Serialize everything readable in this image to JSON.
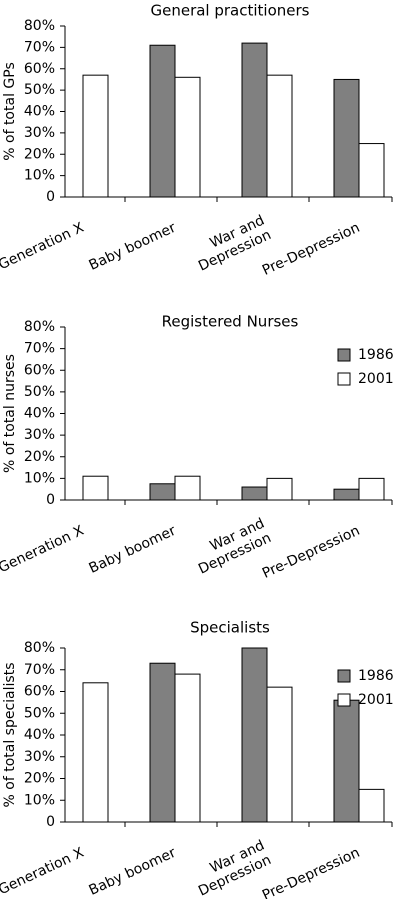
{
  "chart_data": [
    {
      "type": "bar",
      "title": "General practitioners",
      "ylabel": "% of total GPs",
      "categories": [
        "Generation X",
        "Baby boomer",
        "War and\nDepression",
        "Pre-Depression"
      ],
      "series": [
        {
          "name": "1986",
          "color": "#808080",
          "values": [
            null,
            71,
            72,
            55
          ]
        },
        {
          "name": "2001",
          "color": "#ffffff",
          "values": [
            57,
            56,
            57,
            25
          ]
        }
      ],
      "ylim": [
        0,
        80
      ],
      "yticks": [
        0,
        {
          "value": 10,
          "label": "10%"
        },
        {
          "value": 20,
          "label": "20%"
        },
        {
          "value": 30,
          "label": "30%"
        },
        {
          "value": 40,
          "label": "40%"
        },
        {
          "value": 50,
          "label": "50%"
        },
        {
          "value": 60,
          "label": "60%"
        },
        {
          "value": 70,
          "label": "70%"
        },
        {
          "value": 80,
          "label": "80%"
        }
      ],
      "legend": false
    },
    {
      "type": "bar",
      "title": "Registered Nurses",
      "ylabel": "% of total nurses",
      "categories": [
        "Generation X",
        "Baby boomer",
        "War and\nDepression",
        "Pre-Depression"
      ],
      "series": [
        {
          "name": "1986",
          "color": "#808080",
          "values": [
            null,
            7.5,
            6,
            5
          ]
        },
        {
          "name": "2001",
          "color": "#ffffff",
          "values": [
            11,
            11,
            10,
            10
          ]
        }
      ],
      "ylim": [
        0,
        80
      ],
      "yticks": [
        0,
        {
          "value": 10,
          "label": "10%"
        },
        {
          "value": 20,
          "label": "20%"
        },
        {
          "value": 30,
          "label": "30%"
        },
        {
          "value": 40,
          "label": "40%"
        },
        {
          "value": 50,
          "label": "50%"
        },
        {
          "value": 60,
          "label": "60%"
        },
        {
          "value": 70,
          "label": "70%"
        },
        {
          "value": 80,
          "label": "80%"
        }
      ],
      "legend": "top-right"
    },
    {
      "type": "bar",
      "title": "Specialists",
      "ylabel": "% of total specialists",
      "categories": [
        "Generation X",
        "Baby boomer",
        "War and\nDepression",
        "Pre-Depression"
      ],
      "series": [
        {
          "name": "1986",
          "color": "#808080",
          "values": [
            null,
            73,
            80,
            56
          ]
        },
        {
          "name": "2001",
          "color": "#ffffff",
          "values": [
            64,
            68,
            62,
            15
          ]
        }
      ],
      "ylim": [
        0,
        80
      ],
      "yticks": [
        0,
        {
          "value": 10,
          "label": "10%"
        },
        {
          "value": 20,
          "label": "20%"
        },
        {
          "value": 30,
          "label": "30%"
        },
        {
          "value": 40,
          "label": "40%"
        },
        {
          "value": 50,
          "label": "50%"
        },
        {
          "value": 60,
          "label": "60%"
        },
        {
          "value": 70,
          "label": "70%"
        },
        {
          "value": 80,
          "label": "80%"
        }
      ],
      "legend": "top-right"
    }
  ]
}
